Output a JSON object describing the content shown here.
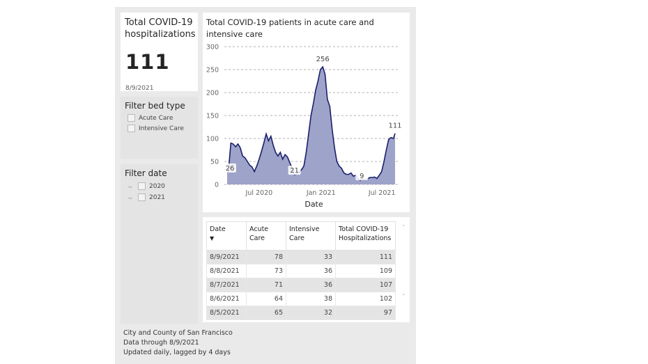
{
  "kpi": {
    "title": "Total COVID-19 hospitalizations",
    "value": "111",
    "date": "8/9/2021"
  },
  "filter_bed": {
    "title": "Filter bed type",
    "options": [
      "Acute Care",
      "Intensive Care"
    ]
  },
  "filter_date": {
    "title": "Filter date",
    "options": [
      "2020",
      "2021"
    ]
  },
  "chart_data": {
    "type": "area",
    "title": "Total COVID-19 patients in acute care and intensive care",
    "xlabel": "Date",
    "ylabel": "",
    "ylim": [
      0,
      300
    ],
    "yticks": [
      "0",
      "50",
      "100",
      "150",
      "200",
      "250",
      "300"
    ],
    "xticks": [
      {
        "label": "Jul 2020",
        "date": "2020-07-01"
      },
      {
        "label": "Jan 2021",
        "date": "2021-01-01"
      },
      {
        "label": "Jul 2021",
        "date": "2021-07-01"
      }
    ],
    "xrange": [
      "2020-03-28",
      "2021-08-09"
    ],
    "fill": "#9ea3c9",
    "line": "#1a1f6b",
    "grid": true,
    "data_labels": [
      {
        "date": "2020-03-28",
        "label": "26"
      },
      {
        "date": "2020-10-14",
        "label": "21"
      },
      {
        "date": "2021-01-06",
        "label": "256"
      },
      {
        "date": "2021-04-28",
        "label": "9"
      },
      {
        "date": "2021-08-09",
        "label": "111"
      }
    ],
    "series": [
      {
        "name": "Total COVID-19 Hospitalizations",
        "points": [
          [
            "2020-03-28",
            26
          ],
          [
            "2020-04-01",
            30
          ],
          [
            "2020-04-08",
            90
          ],
          [
            "2020-04-15",
            88
          ],
          [
            "2020-04-22",
            82
          ],
          [
            "2020-04-29",
            88
          ],
          [
            "2020-05-06",
            80
          ],
          [
            "2020-05-13",
            62
          ],
          [
            "2020-05-20",
            58
          ],
          [
            "2020-05-27",
            50
          ],
          [
            "2020-06-03",
            42
          ],
          [
            "2020-06-10",
            38
          ],
          [
            "2020-06-17",
            28
          ],
          [
            "2020-06-24",
            40
          ],
          [
            "2020-07-01",
            55
          ],
          [
            "2020-07-08",
            72
          ],
          [
            "2020-07-15",
            90
          ],
          [
            "2020-07-22",
            110
          ],
          [
            "2020-07-29",
            95
          ],
          [
            "2020-08-05",
            105
          ],
          [
            "2020-08-12",
            85
          ],
          [
            "2020-08-19",
            70
          ],
          [
            "2020-08-26",
            62
          ],
          [
            "2020-09-02",
            70
          ],
          [
            "2020-09-09",
            55
          ],
          [
            "2020-09-16",
            65
          ],
          [
            "2020-09-23",
            60
          ],
          [
            "2020-09-30",
            48
          ],
          [
            "2020-10-07",
            35
          ],
          [
            "2020-10-14",
            21
          ],
          [
            "2020-10-21",
            23
          ],
          [
            "2020-10-28",
            28
          ],
          [
            "2020-11-04",
            32
          ],
          [
            "2020-11-11",
            40
          ],
          [
            "2020-11-18",
            70
          ],
          [
            "2020-11-25",
            110
          ],
          [
            "2020-12-02",
            150
          ],
          [
            "2020-12-09",
            175
          ],
          [
            "2020-12-16",
            205
          ],
          [
            "2020-12-23",
            225
          ],
          [
            "2020-12-30",
            250
          ],
          [
            "2021-01-06",
            256
          ],
          [
            "2021-01-13",
            240
          ],
          [
            "2021-01-20",
            185
          ],
          [
            "2021-01-27",
            170
          ],
          [
            "2021-02-03",
            120
          ],
          [
            "2021-02-10",
            80
          ],
          [
            "2021-02-17",
            50
          ],
          [
            "2021-02-24",
            40
          ],
          [
            "2021-03-03",
            35
          ],
          [
            "2021-03-10",
            25
          ],
          [
            "2021-03-17",
            22
          ],
          [
            "2021-03-24",
            22
          ],
          [
            "2021-03-31",
            25
          ],
          [
            "2021-04-07",
            18
          ],
          [
            "2021-04-14",
            20
          ],
          [
            "2021-04-21",
            12
          ],
          [
            "2021-04-28",
            9
          ],
          [
            "2021-05-05",
            12
          ],
          [
            "2021-05-12",
            10
          ],
          [
            "2021-05-19",
            12
          ],
          [
            "2021-05-26",
            15
          ],
          [
            "2021-06-02",
            15
          ],
          [
            "2021-06-09",
            16
          ],
          [
            "2021-06-16",
            13
          ],
          [
            "2021-06-23",
            20
          ],
          [
            "2021-06-30",
            28
          ],
          [
            "2021-07-07",
            50
          ],
          [
            "2021-07-14",
            75
          ],
          [
            "2021-07-21",
            98
          ],
          [
            "2021-07-28",
            102
          ],
          [
            "2021-08-04",
            100
          ],
          [
            "2021-08-09",
            111
          ]
        ]
      }
    ]
  },
  "table": {
    "headers": [
      "Date",
      "Acute Care",
      "Intensive Care",
      "Total COVID-19 Hospitalizations"
    ],
    "rows": [
      [
        "8/9/2021",
        "78",
        "33",
        "111"
      ],
      [
        "8/8/2021",
        "73",
        "36",
        "109"
      ],
      [
        "8/7/2021",
        "71",
        "36",
        "107"
      ],
      [
        "8/6/2021",
        "64",
        "38",
        "102"
      ],
      [
        "8/5/2021",
        "65",
        "32",
        "97"
      ]
    ]
  },
  "footer": [
    "City and County of San Francisco",
    "Data through 8/9/2021",
    "Updated daily, lagged by 4 days"
  ]
}
